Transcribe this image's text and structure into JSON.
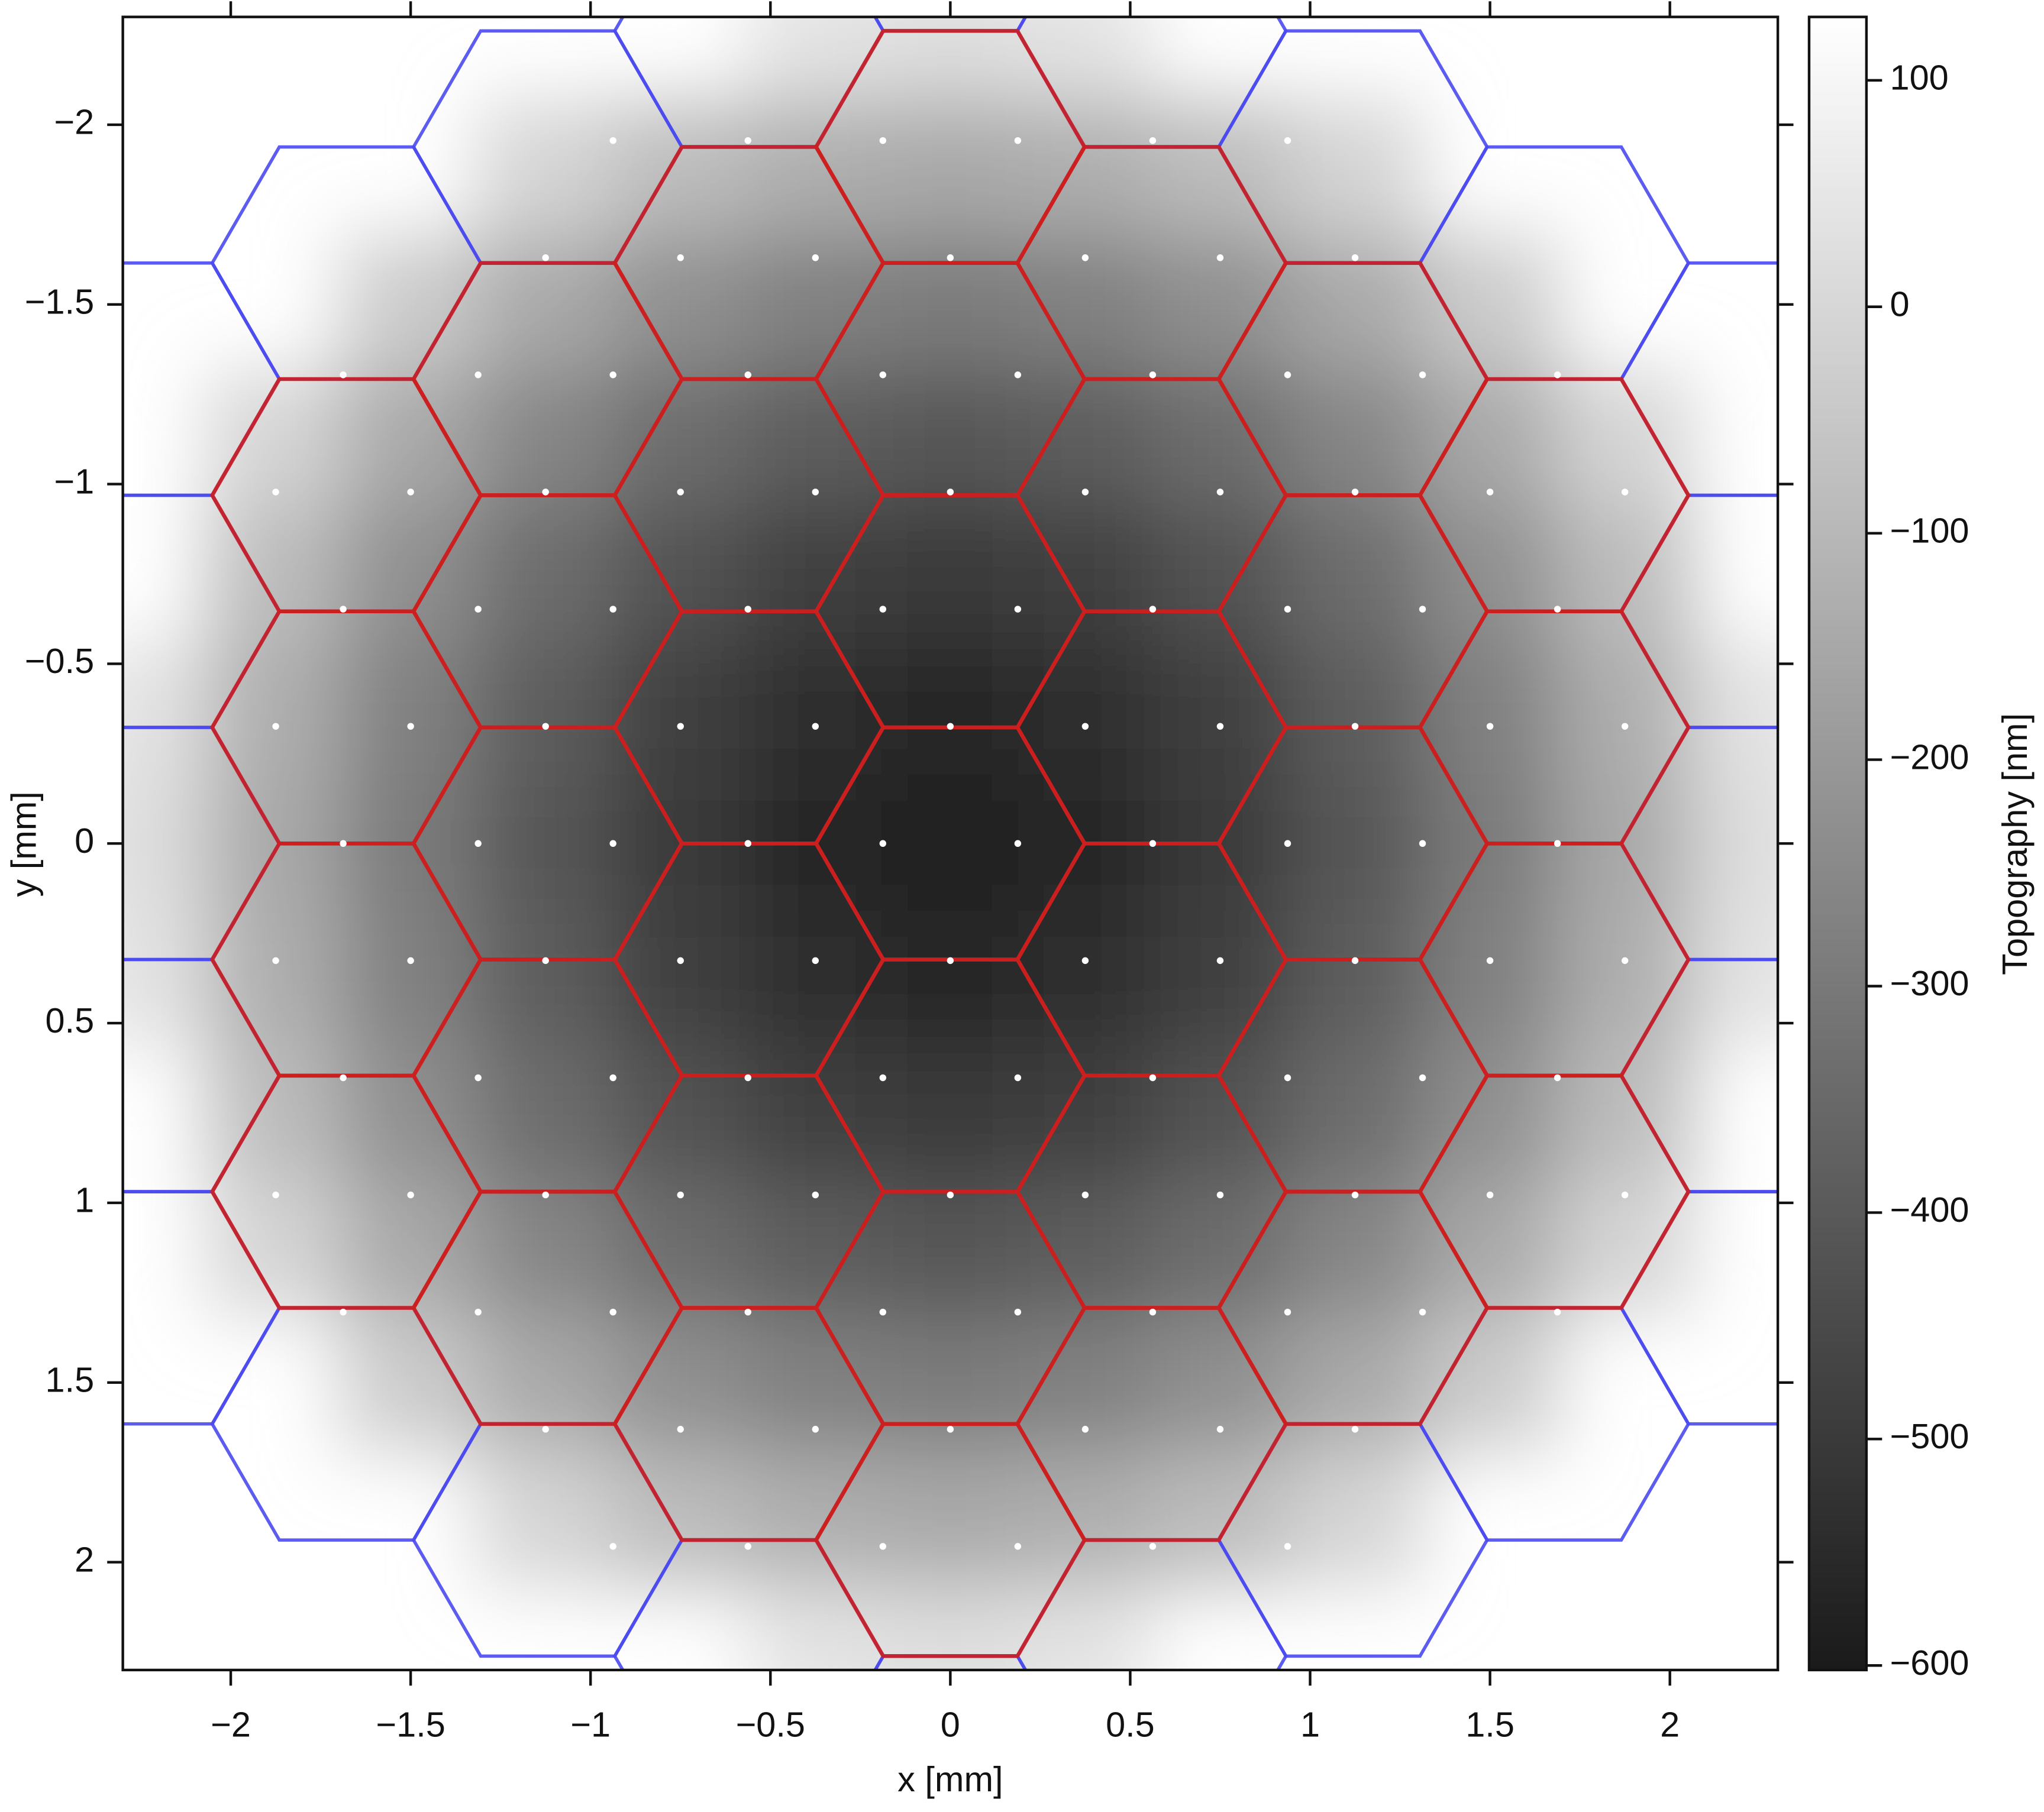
{
  "chart_data": {
    "type": "heatmap",
    "x_label": "x [mm]",
    "y_label": "y [mm]",
    "colorbar_label": "Topography [nm]",
    "x": [
      -2.25,
      -1.875,
      -1.5,
      -1.125,
      -0.75,
      -0.375,
      0,
      0.375,
      0.75,
      1.125,
      1.5,
      1.875,
      2.25
    ],
    "y": [
      -2.25,
      -1.875,
      -1.5,
      -1.125,
      -0.75,
      -0.375,
      0,
      0.375,
      0.75,
      1.125,
      1.5,
      1.875,
      2.25
    ],
    "z": [
      [
        null,
        null,
        null,
        null,
        null,
        38,
        23,
        38,
        null,
        null,
        null,
        null,
        null
      ],
      [
        null,
        null,
        null,
        -8,
        -84,
        -130,
        -146,
        -130,
        -84,
        -8,
        null,
        null,
        null
      ],
      [
        null,
        null,
        -38,
        -146,
        -225,
        -273,
        -289,
        -273,
        -225,
        -146,
        -38,
        null,
        null
      ],
      [
        null,
        -8,
        -146,
        -257,
        -339,
        -390,
        -407,
        -390,
        -339,
        -257,
        -146,
        -8,
        null
      ],
      [
        null,
        -84,
        -225,
        -339,
        -424,
        -478,
        -497,
        -478,
        -424,
        -339,
        -225,
        -84,
        null
      ],
      [
        38,
        -130,
        -273,
        -390,
        -478,
        -535,
        -556,
        -535,
        -478,
        -390,
        -273,
        -130,
        38
      ],
      [
        23,
        -146,
        -289,
        -407,
        -497,
        -556,
        -580,
        -556,
        -497,
        -407,
        -289,
        -146,
        23
      ],
      [
        38,
        -130,
        -273,
        -390,
        -478,
        -535,
        -556,
        -535,
        -478,
        -390,
        -273,
        -130,
        38
      ],
      [
        null,
        -84,
        -225,
        -339,
        -424,
        -478,
        -497,
        -478,
        -424,
        -339,
        -225,
        -84,
        null
      ],
      [
        null,
        -8,
        -146,
        -257,
        -339,
        -390,
        -407,
        -390,
        -339,
        -257,
        -146,
        -8,
        null
      ],
      [
        null,
        null,
        -38,
        -146,
        -225,
        -273,
        -289,
        -273,
        -225,
        -146,
        -38,
        null,
        null
      ],
      [
        null,
        null,
        null,
        -8,
        -84,
        -130,
        -146,
        -130,
        -84,
        -8,
        null,
        null,
        null
      ],
      [
        null,
        null,
        null,
        null,
        null,
        38,
        23,
        38,
        null,
        null,
        null,
        null,
        null
      ]
    ],
    "xlim": [
      -2.3,
      2.3
    ],
    "ylim": [
      -2.3,
      2.3
    ],
    "y_inverted": true,
    "xticks": [
      {
        "value": -2,
        "label": "−2"
      },
      {
        "value": -1.5,
        "label": "−1.5"
      },
      {
        "value": -1,
        "label": "−1"
      },
      {
        "value": -0.5,
        "label": "−0.5"
      },
      0,
      0.5,
      1,
      1.5,
      2
    ],
    "yticks": [
      {
        "value": -2,
        "label": "−2"
      },
      {
        "value": -1.5,
        "label": "−1.5"
      },
      {
        "value": -1,
        "label": "−1"
      },
      {
        "value": -0.5,
        "label": "−0.5"
      },
      0,
      0.5,
      1,
      1.5,
      2
    ],
    "zlim": [
      -602,
      128
    ],
    "zticks": [
      100,
      0,
      {
        "value": -100,
        "label": "−100"
      },
      {
        "value": -200,
        "label": "−200"
      },
      {
        "value": -300,
        "label": "−300"
      },
      {
        "value": -400,
        "label": "−400"
      },
      {
        "value": -500,
        "label": "−500"
      },
      {
        "value": -600,
        "label": "−600"
      }
    ],
    "colormap": [
      "#1a1a1a",
      "#ffffff"
    ]
  }
}
